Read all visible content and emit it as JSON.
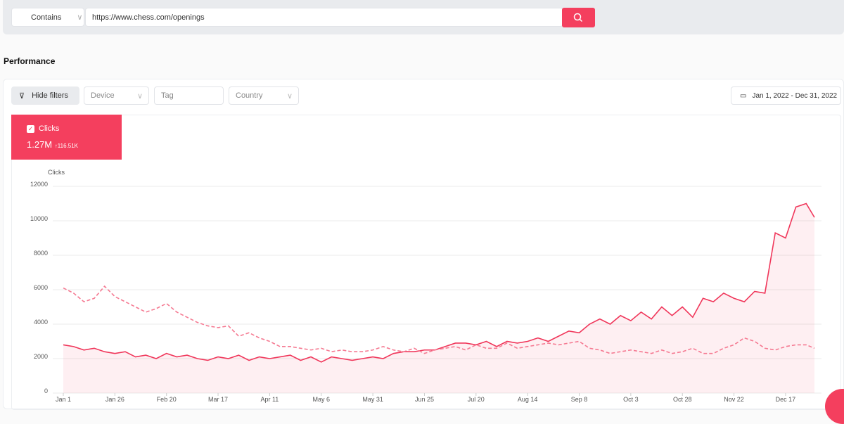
{
  "search": {
    "match_type": "Contains",
    "url": "https://www.chess.com/openings"
  },
  "section_title": "Performance",
  "filters": {
    "toggle": "Hide filters",
    "device": "Device",
    "tag": "Tag",
    "country": "Country",
    "date_range": "Jan 1, 2022 - Dec 31, 2022"
  },
  "metric": {
    "name": "Clicks",
    "value": "1.27M",
    "change": "↑116.51K"
  },
  "chart_data": {
    "type": "line",
    "y_label": "Clicks",
    "x": [
      0,
      5,
      10,
      15,
      20,
      25,
      30,
      35,
      40,
      45,
      50,
      55,
      60,
      65,
      70,
      75,
      80,
      85,
      90,
      95,
      100,
      105,
      110,
      115,
      120,
      125,
      130,
      135,
      140,
      145,
      150,
      155,
      160,
      165,
      170,
      175,
      180,
      185,
      190,
      195,
      200,
      205,
      210,
      215,
      220,
      225,
      230,
      235,
      240,
      245,
      250,
      255,
      260,
      265,
      270,
      275,
      280,
      285,
      290,
      295,
      300,
      305,
      310,
      315,
      320,
      325,
      330,
      335,
      340,
      345,
      350,
      355,
      360,
      364
    ],
    "xlim": [
      0,
      364
    ],
    "xticks": [
      {
        "value": 0,
        "label": "Jan 1"
      },
      {
        "value": 25,
        "label": "Jan 26"
      },
      {
        "value": 50,
        "label": "Feb 20"
      },
      {
        "value": 75,
        "label": "Mar 17"
      },
      {
        "value": 100,
        "label": "Apr 11"
      },
      {
        "value": 125,
        "label": "May 6"
      },
      {
        "value": 150,
        "label": "May 31"
      },
      {
        "value": 175,
        "label": "Jun 25"
      },
      {
        "value": 200,
        "label": "Jul 20"
      },
      {
        "value": 225,
        "label": "Aug 14"
      },
      {
        "value": 250,
        "label": "Sep 8"
      },
      {
        "value": 275,
        "label": "Oct 3"
      },
      {
        "value": 300,
        "label": "Oct 28"
      },
      {
        "value": 325,
        "label": "Nov 22"
      },
      {
        "value": 350,
        "label": "Dec 17"
      }
    ],
    "ylim": [
      0,
      12000
    ],
    "yticks": [
      0,
      2000,
      4000,
      6000,
      8000,
      10000,
      12000
    ],
    "grid": true,
    "series": [
      {
        "color": "#f0365a",
        "line_style": "solid",
        "area": true,
        "values": [
          2800,
          2700,
          2500,
          2600,
          2400,
          2300,
          2400,
          2100,
          2200,
          2000,
          2300,
          2100,
          2200,
          2000,
          1900,
          2100,
          2000,
          2200,
          1900,
          2100,
          2000,
          2100,
          2200,
          1900,
          2100,
          1800,
          2100,
          2000,
          1900,
          2000,
          2100,
          2000,
          2300,
          2400,
          2400,
          2500,
          2500,
          2700,
          2900,
          2900,
          2800,
          3000,
          2700,
          3000,
          2900,
          3000,
          3200,
          3000,
          3300,
          3600,
          3500,
          4000,
          4300,
          4000,
          4500,
          4200,
          4700,
          4300,
          5000,
          4500,
          5000,
          4400,
          5500,
          5300,
          5800,
          5500,
          5300,
          5900,
          5800,
          9300,
          9000,
          10800,
          11000,
          10200
        ]
      },
      {
        "color": "#f57a92",
        "line_style": "dashed",
        "area": false,
        "values": [
          6100,
          5800,
          5300,
          5500,
          6200,
          5600,
          5300,
          5000,
          4700,
          4900,
          5200,
          4700,
          4400,
          4100,
          3900,
          3800,
          3900,
          3300,
          3500,
          3200,
          3000,
          2700,
          2700,
          2600,
          2500,
          2600,
          2400,
          2500,
          2400,
          2400,
          2500,
          2700,
          2500,
          2400,
          2600,
          2300,
          2500,
          2600,
          2700,
          2500,
          2800,
          2600,
          2600,
          2900,
          2600,
          2700,
          2800,
          2900,
          2800,
          2900,
          3000,
          2600,
          2500,
          2300,
          2400,
          2500,
          2400,
          2300,
          2500,
          2300,
          2400,
          2600,
          2300,
          2300,
          2600,
          2800,
          3200,
          3000,
          2600,
          2500,
          2700,
          2800,
          2800,
          2600
        ]
      }
    ]
  }
}
